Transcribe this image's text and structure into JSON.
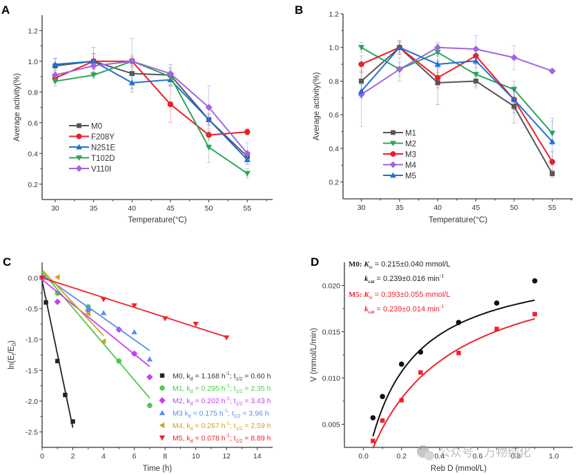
{
  "chart_data": [
    {
      "panel": "A",
      "type": "line",
      "title": "",
      "xlabel": "Temperature(°C)",
      "ylabel": "Average activity(%)",
      "x": [
        30,
        35,
        40,
        45,
        50,
        55
      ],
      "xticks": [
        "30",
        "35",
        "40",
        "45",
        "50",
        "55"
      ],
      "xlim": [
        28.3,
        58.3
      ],
      "yticks": [
        "0.2",
        "0.4",
        "0.6",
        "0.8",
        "1.0",
        "1.2"
      ],
      "ylim": [
        0.1,
        1.3
      ],
      "grid": false,
      "legend_position": "center-left",
      "error_bars": true,
      "series": [
        {
          "name": "M0",
          "color": "#555555",
          "marker": "square",
          "values": [
            0.97,
            1.0,
            0.92,
            0.91,
            0.62,
            0.38
          ],
          "err": [
            0.05,
            0.05,
            0.1,
            0.07,
            0.03,
            0.03
          ]
        },
        {
          "name": "F208Y",
          "color": "#ee1c25",
          "marker": "circle",
          "values": [
            0.89,
            1.0,
            1.0,
            0.72,
            0.52,
            0.54
          ],
          "err": [
            0.03,
            0.05,
            0.03,
            0.12,
            0.03,
            0.02
          ]
        },
        {
          "name": "N251E",
          "color": "#1f6fd6",
          "marker": "triangle",
          "values": [
            0.98,
            1.0,
            0.86,
            0.88,
            0.62,
            0.36
          ],
          "err": [
            0.04,
            0.09,
            0.06,
            0.04,
            0.04,
            0.03
          ]
        },
        {
          "name": "T102D",
          "color": "#2aa55a",
          "marker": "triangle-down",
          "values": [
            0.87,
            0.91,
            1.0,
            0.9,
            0.44,
            0.27
          ],
          "err": [
            0.03,
            0.02,
            0.15,
            0.05,
            0.1,
            0.03
          ]
        },
        {
          "name": "V110I",
          "color": "#a066e0",
          "marker": "diamond",
          "values": [
            0.91,
            0.97,
            1.0,
            0.92,
            0.7,
            0.4
          ],
          "err": [
            0.03,
            0.04,
            0.04,
            0.04,
            0.14,
            0.07
          ]
        }
      ]
    },
    {
      "panel": "B",
      "type": "line",
      "title": "",
      "xlabel": "Temperature(°C)",
      "ylabel": "Average activity(%)",
      "x": [
        30,
        35,
        40,
        45,
        50,
        55
      ],
      "xticks": [
        "30",
        "35",
        "40",
        "45",
        "50",
        "55"
      ],
      "xlim": [
        27.6,
        57.7
      ],
      "yticks": [
        "0.2",
        "0.4",
        "0.6",
        "0.8",
        "1.0",
        "1.2"
      ],
      "ylim": [
        0.1,
        1.2
      ],
      "grid": false,
      "legend_position": "bottom-left",
      "error_bars": true,
      "series": [
        {
          "name": "M1",
          "color": "#555555",
          "marker": "square",
          "values": [
            0.8,
            1.0,
            0.79,
            0.8,
            0.65,
            0.25
          ],
          "err": [
            0.06,
            0.04,
            0.13,
            0.03,
            0.1,
            0.02
          ]
        },
        {
          "name": "M2",
          "color": "#2aa55a",
          "marker": "triangle-down",
          "values": [
            1.0,
            0.87,
            0.97,
            0.84,
            0.75,
            0.49
          ],
          "err": [
            0.03,
            0.07,
            0.05,
            0.08,
            0.05,
            0.07
          ]
        },
        {
          "name": "M3",
          "color": "#ee1c25",
          "marker": "circle",
          "values": [
            0.9,
            1.0,
            0.82,
            0.95,
            0.69,
            0.32
          ],
          "err": [
            0.05,
            0.04,
            0.06,
            0.05,
            0.06,
            0.06
          ]
        },
        {
          "name": "M4",
          "color": "#a066e0",
          "marker": "diamond",
          "values": [
            0.72,
            0.87,
            1.0,
            0.99,
            0.94,
            0.86
          ],
          "err": [
            0.19,
            0.04,
            0.03,
            0.08,
            0.07,
            0.01
          ]
        },
        {
          "name": "M5",
          "color": "#1f6fd6",
          "marker": "triangle",
          "values": [
            0.74,
            1.0,
            0.9,
            0.92,
            0.69,
            0.44
          ],
          "err": [
            0.04,
            0.03,
            0.05,
            0.04,
            0.08,
            0.14
          ]
        }
      ]
    },
    {
      "panel": "C",
      "type": "scatter",
      "title": "",
      "xlabel": "Time (h)",
      "ylabel": "ln(Et/E0)",
      "ylabel_main": "ln(E",
      "ylabel_sub1": "t",
      "ylabel_mid": "/E",
      "ylabel_sub2": "0",
      "ylabel_end": ")",
      "xticks": [
        "0",
        "2",
        "4",
        "6",
        "8",
        "10",
        "12",
        "14"
      ],
      "xtick_values": [
        0,
        2,
        4,
        6,
        8,
        10,
        12,
        14
      ],
      "xlim": [
        0,
        15
      ],
      "yticks": [
        "0.0",
        "-0.5",
        "-1.0",
        "-1.5",
        "-2.0",
        "-2.5"
      ],
      "ytick_values": [
        0,
        -0.5,
        -1.0,
        -1.5,
        -2.0,
        -2.5
      ],
      "ylim": [
        -2.75,
        0.25
      ],
      "grid": false,
      "legend_position": "bottom-right",
      "series": [
        {
          "name": "M0",
          "label": "M0, kd = 1.168 h⁻¹; t1/2 = 0.60 h",
          "kd": "1.168",
          "t_half": "0.60",
          "color": "#222222",
          "marker": "square",
          "x": [
            0,
            0.25,
            1.0,
            1.5,
            2.0
          ],
          "y": [
            0,
            -0.4,
            -1.35,
            -1.9,
            -2.33
          ],
          "fit": [
            [
              0,
              -0.05
            ],
            [
              2,
              -2.43
            ]
          ]
        },
        {
          "name": "M1",
          "label": "M1, kd = 0.295 h⁻¹; t1/2 = 2.35 h",
          "kd": "0.295",
          "t_half": "2.35",
          "color": "#4cc94c",
          "marker": "circle",
          "x": [
            0,
            1,
            3,
            5,
            7
          ],
          "y": [
            0,
            -0.25,
            -0.47,
            -1.35,
            -2.07
          ],
          "fit": [
            [
              0,
              0.1
            ],
            [
              7,
              -1.95
            ]
          ]
        },
        {
          "name": "M2",
          "label": "M2, kd = 0.202 h⁻¹; t1/2 = 3.43 h",
          "kd": "0.202",
          "t_half": "3.43",
          "color": "#c63ef0",
          "marker": "diamond",
          "x": [
            0,
            1,
            3,
            5,
            6,
            7
          ],
          "y": [
            0,
            -0.39,
            -0.53,
            -0.84,
            -1.23,
            -1.61
          ],
          "fit": [
            [
              0,
              -0.03
            ],
            [
              7,
              -1.44
            ]
          ]
        },
        {
          "name": "M3",
          "label": "M3 kd = 0.175 h⁻¹; t1/2 = 3.96 h",
          "kd": "0.175",
          "t_half": "3.96",
          "color": "#5b8df0",
          "marker": "triangle",
          "x": [
            0,
            3,
            4,
            6,
            7
          ],
          "y": [
            0,
            -0.5,
            -0.57,
            -0.88,
            -1.32
          ],
          "fit": [
            [
              0,
              0.05
            ],
            [
              7,
              -1.18
            ]
          ]
        },
        {
          "name": "M4",
          "label": "M4, kd = 0.267 h⁻¹; t1/2 = 2.59 h",
          "kd": "0.267",
          "t_half": "2.59",
          "color": "#d4a017",
          "marker": "triangle-left",
          "x": [
            0,
            1,
            3,
            4
          ],
          "y": [
            0,
            0.01,
            -0.58,
            -1.03
          ],
          "fit": [
            [
              0,
              0.13
            ],
            [
              4,
              -0.94
            ]
          ]
        },
        {
          "name": "M5",
          "label": "M5, kd = 0.078 h⁻¹; t1/2 = 8.89 h",
          "kd": "0.078",
          "t_half": "8.89",
          "color": "#f0212a",
          "marker": "triangle-down",
          "x": [
            0,
            4,
            6,
            8,
            10,
            12
          ],
          "y": [
            0,
            -0.35,
            -0.45,
            -0.66,
            -0.75,
            -0.97
          ],
          "fit": [
            [
              0,
              0.0
            ],
            [
              12,
              -0.96
            ]
          ]
        }
      ]
    },
    {
      "panel": "D",
      "type": "scatter",
      "title": "",
      "xlabel": "Reb D (mmol/L)",
      "ylabel": "V (mmol/L/min)",
      "xticks": [
        "0.0",
        "0.2",
        "0.4",
        "0.6",
        "0.8",
        "1.0"
      ],
      "xtick_values": [
        0,
        0.2,
        0.4,
        0.6,
        0.8,
        1.0
      ],
      "xlim": [
        -0.1,
        1.1
      ],
      "yticks": [
        "0.005",
        "0.010",
        "0.015",
        "0.020"
      ],
      "ytick_values": [
        0.005,
        0.01,
        0.015,
        0.02
      ],
      "ylim": [
        0.0025,
        0.0225
      ],
      "grid": false,
      "annotations": [
        {
          "series": "M0",
          "color": "#222222",
          "line1_name": "M0",
          "km_label": "K",
          "km_sub": "m",
          "km_value": " = 0.215±0.040 mmol/L",
          "kcat_label": "k",
          "kcat_sub": "cat",
          "kcat_value": " = 0.239±0.016 min",
          "kcat_exp": "-1"
        },
        {
          "series": "M5",
          "color": "#f0212a",
          "line1_name": "M5",
          "km_label": "K",
          "km_sub": "m",
          "km_value": " = 0.393±0.055 mmol/L",
          "kcat_label": "k",
          "kcat_sub": "cat",
          "kcat_value": " = 0.239±0.014 min",
          "kcat_exp": "-1"
        }
      ],
      "series": [
        {
          "name": "M0",
          "color": "#111111",
          "marker": "circle",
          "km": 0.215,
          "vmax": 0.0238,
          "x": [
            0.05,
            0.1,
            0.2,
            0.3,
            0.5,
            0.7,
            0.9
          ],
          "y": [
            0.0057,
            0.008,
            0.0115,
            0.0128,
            0.016,
            0.0181,
            0.0205
          ]
        },
        {
          "name": "M5",
          "color": "#f0212a",
          "marker": "square",
          "km": 0.393,
          "vmax": 0.024,
          "x": [
            0.05,
            0.1,
            0.2,
            0.3,
            0.5,
            0.7,
            0.9
          ],
          "y": [
            0.0032,
            0.0054,
            0.0076,
            0.0106,
            0.0127,
            0.0153,
            0.0169
          ]
        }
      ]
    }
  ],
  "watermark": {
    "text": "公众号 · 万物纯化"
  }
}
